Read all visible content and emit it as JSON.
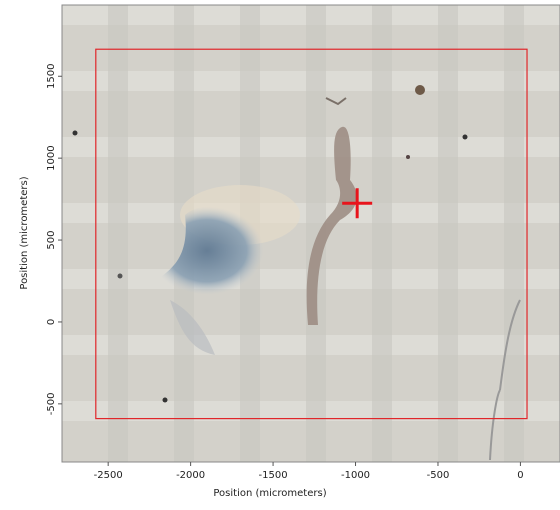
{
  "chart_data": {
    "type": "image",
    "xlabel": "Position (micrometers)",
    "ylabel": "Position (micrometers)",
    "xlim": [
      -2780,
      240
    ],
    "ylim": [
      -855,
      1935
    ],
    "xticks": [
      -2500,
      -2000,
      -1500,
      -1000,
      -500,
      0
    ],
    "yticks": [
      -500,
      0,
      500,
      1000,
      1500
    ],
    "rectangle": {
      "x": [
        -2575,
        40
      ],
      "y": [
        -590,
        1665
      ],
      "color": "#e0262a"
    },
    "marker": {
      "x": -990,
      "y": 725,
      "color": "#e8141c"
    }
  }
}
